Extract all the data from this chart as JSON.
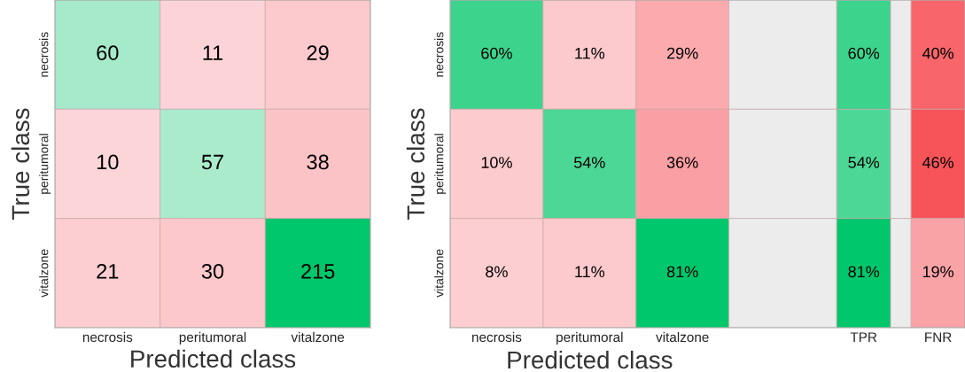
{
  "chart_data": [
    {
      "type": "heatmap",
      "xlabel": "Predicted class",
      "ylabel": "True class",
      "categories": [
        "necrosis",
        "peritumoral",
        "vitalzone"
      ],
      "y_categories": [
        "necrosis",
        "peritumoral",
        "vitalzone"
      ],
      "cells": [
        [
          60,
          11,
          29
        ],
        [
          10,
          57,
          38
        ],
        [
          21,
          30,
          215
        ]
      ],
      "data_labels": true
    },
    {
      "type": "heatmap",
      "xlabel": "Predicted class",
      "ylabel": "True class",
      "categories": [
        "necrosis",
        "peritumoral",
        "vitalzone",
        null,
        "TPR",
        null,
        "FNR"
      ],
      "y_categories": [
        "necrosis",
        "peritumoral",
        "vitalzone"
      ],
      "cells": [
        [
          60,
          11,
          29,
          null,
          60,
          null,
          40
        ],
        [
          10,
          54,
          36,
          null,
          54,
          null,
          46
        ],
        [
          8,
          11,
          81,
          null,
          81,
          null,
          19
        ]
      ],
      "cell_labels": [
        [
          "60%",
          "11%",
          "29%",
          null,
          "60%",
          null,
          "40%"
        ],
        [
          "10%",
          "54%",
          "36%",
          null,
          "54%",
          null,
          "46%"
        ],
        [
          "8%",
          "11%",
          "81%",
          null,
          "81%",
          null,
          "19%"
        ]
      ]
    }
  ]
}
